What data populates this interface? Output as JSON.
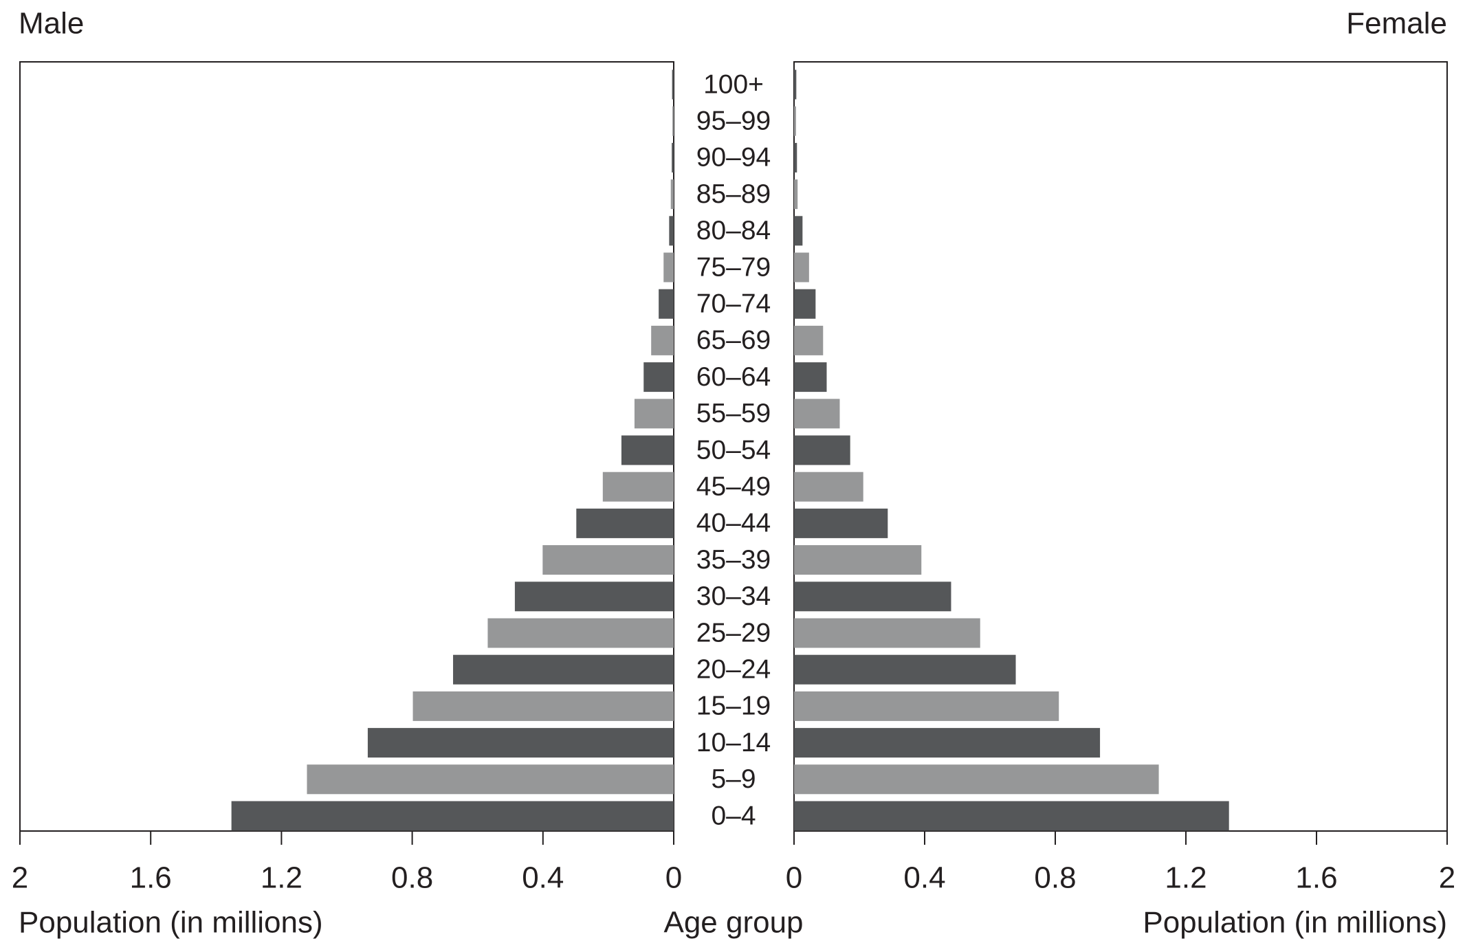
{
  "chart_data": {
    "type": "pyramid",
    "categories": [
      "100+",
      "95–99",
      "90–94",
      "85–89",
      "80–84",
      "75–79",
      "70–74",
      "65–69",
      "60–64",
      "55–59",
      "50–54",
      "45–49",
      "40–44",
      "35–39",
      "30–34",
      "25–29",
      "20–24",
      "15–19",
      "10–14",
      "5–9",
      "0–4"
    ],
    "series": [
      {
        "name": "Male",
        "values": [
          0.005,
          0.004,
          0.006,
          0.009,
          0.014,
          0.031,
          0.046,
          0.069,
          0.092,
          0.12,
          0.16,
          0.217,
          0.298,
          0.401,
          0.486,
          0.569,
          0.675,
          0.798,
          0.936,
          1.122,
          1.353
        ]
      },
      {
        "name": "Female",
        "values": [
          0.007,
          0.006,
          0.009,
          0.011,
          0.026,
          0.046,
          0.066,
          0.089,
          0.1,
          0.14,
          0.172,
          0.212,
          0.287,
          0.39,
          0.481,
          0.57,
          0.679,
          0.811,
          0.937,
          1.117,
          1.332
        ]
      }
    ],
    "colors": [
      "#555759",
      "#969798"
    ],
    "xlabel": "Population (in millions)",
    "center_label": "Age group",
    "xlim": [
      0,
      2
    ],
    "xticks": [
      0,
      0.4,
      0.8,
      1.2,
      1.6,
      2
    ]
  }
}
